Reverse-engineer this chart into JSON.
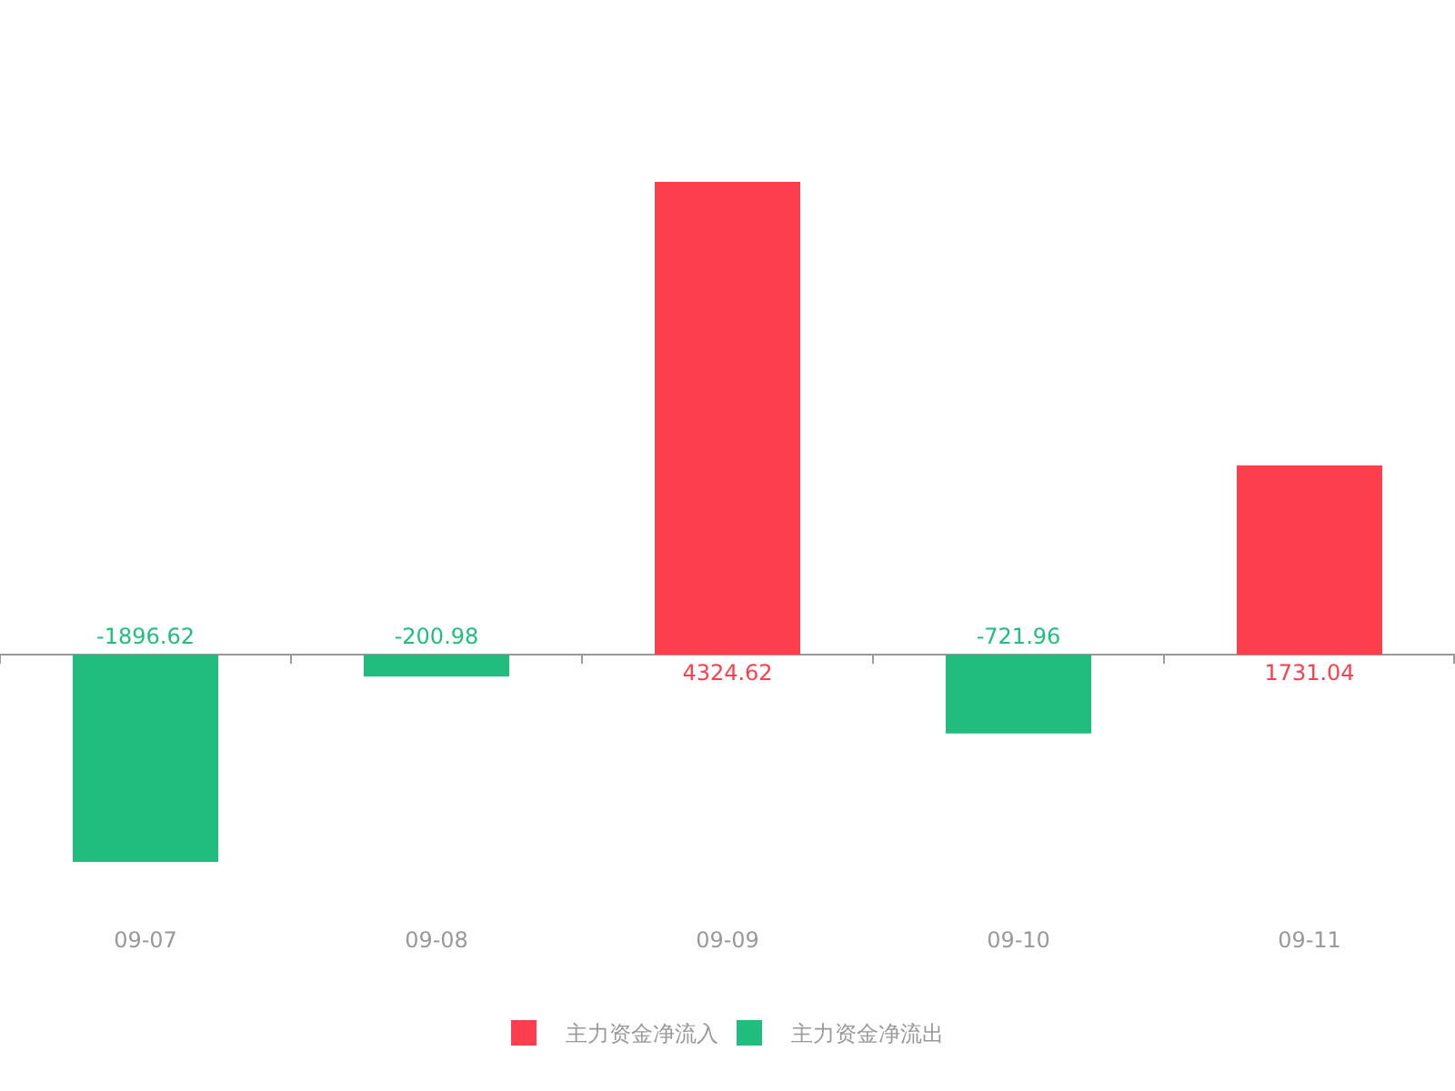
{
  "chart_data": {
    "type": "bar",
    "categories": [
      "09-07",
      "09-08",
      "09-09",
      "09-10",
      "09-11"
    ],
    "series": [
      {
        "name": "主力资金净流入",
        "color": "#fd3e4f",
        "values": [
          null,
          null,
          4324.62,
          null,
          1731.04
        ]
      },
      {
        "name": "主力资金净流出",
        "color": "#21bd7f",
        "values": [
          -1896.62,
          -200.98,
          null,
          -721.96,
          null
        ]
      }
    ],
    "stacked": true,
    "data_labels": true,
    "legend": "bottom"
  }
}
